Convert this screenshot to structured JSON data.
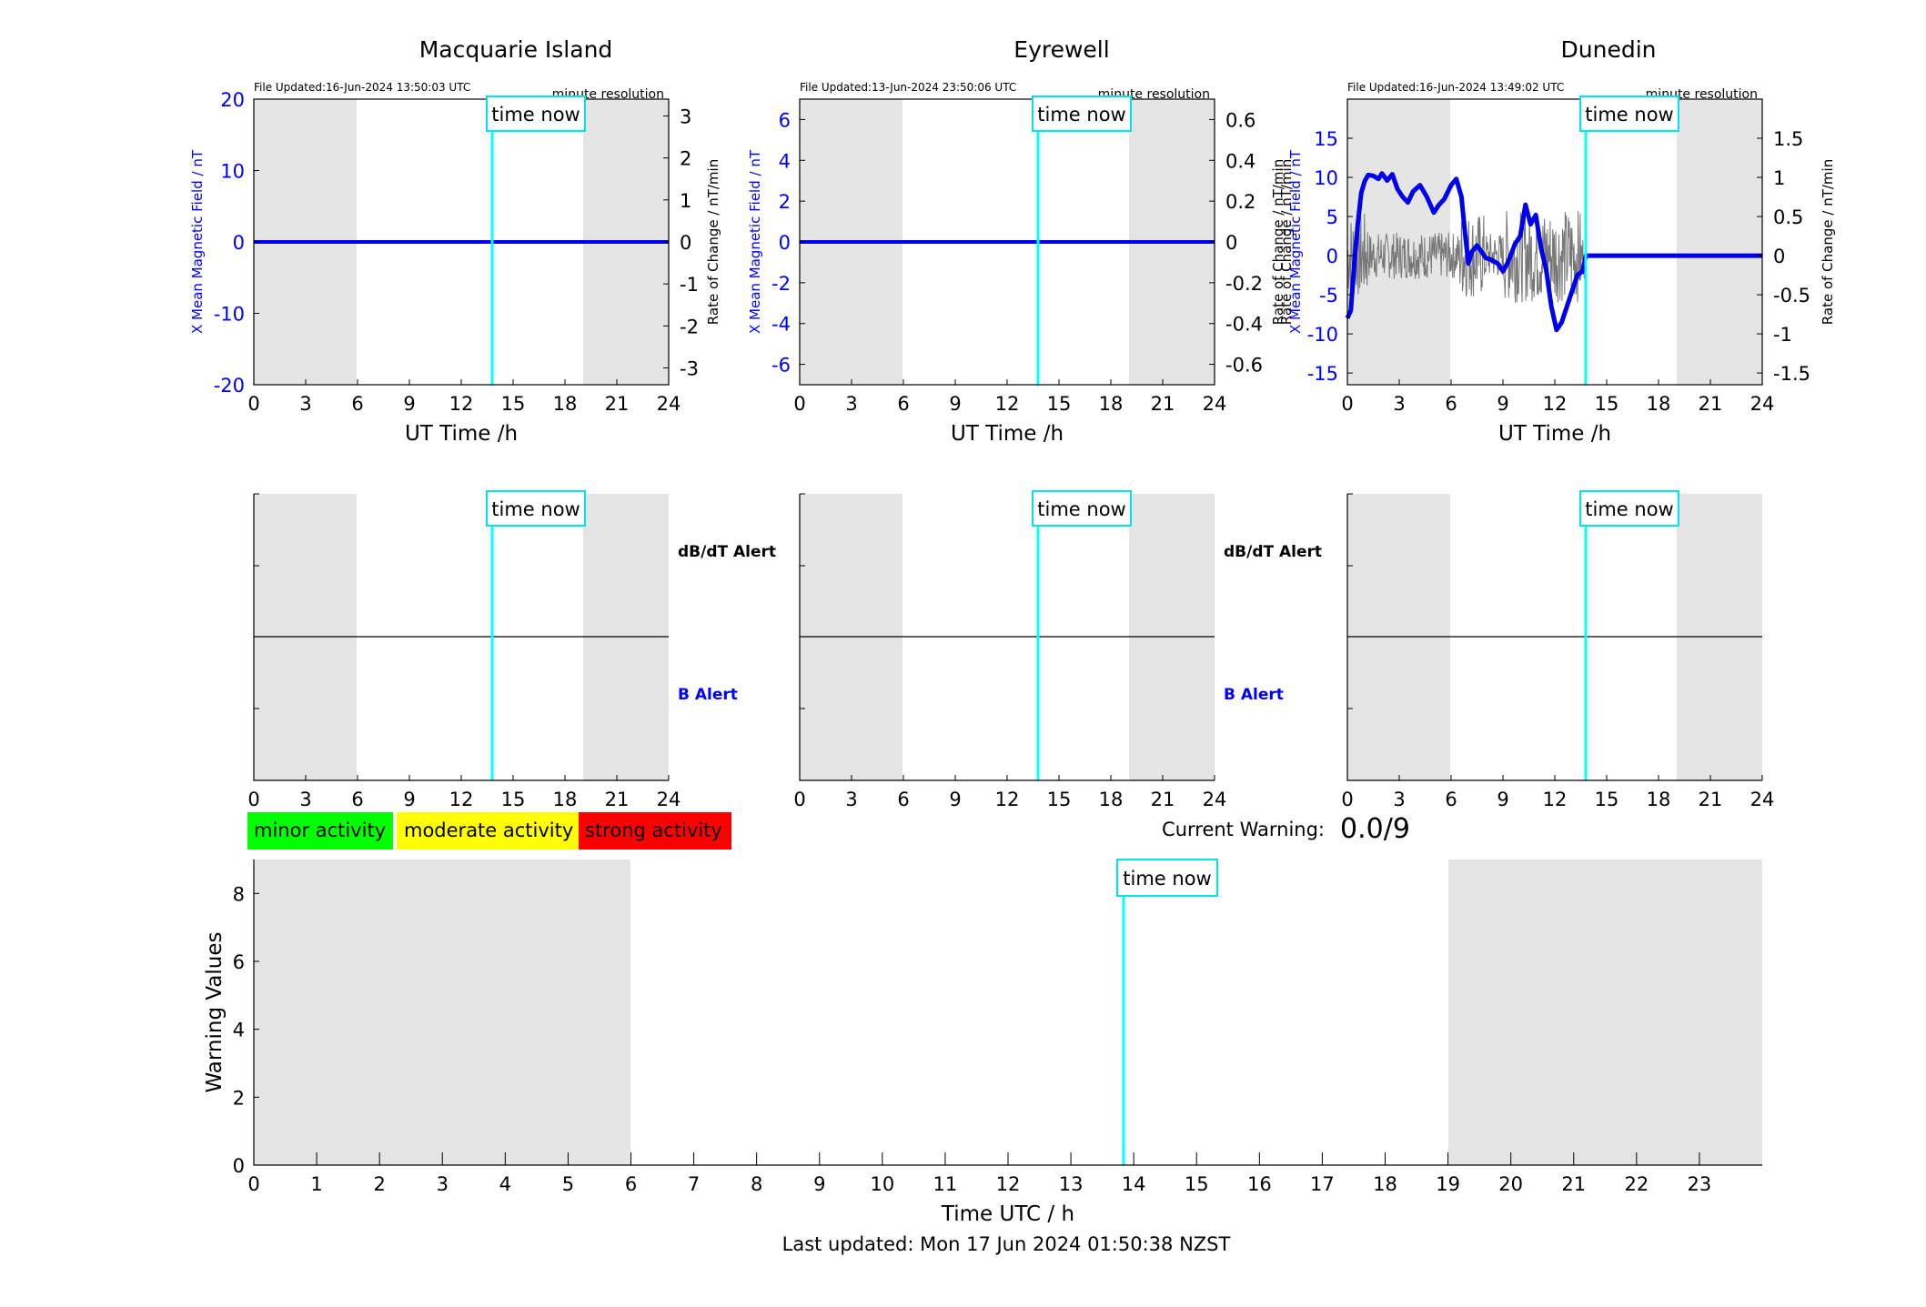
{
  "colors": {
    "night_shade": "#e5e5e5",
    "time_now": "#00ffff",
    "field_line": "#0000ee",
    "rate_line": "#777777",
    "axis_blue": "#0000ff",
    "minor": "#00ff00",
    "moderate": "#ffff00",
    "strong": "#ff0000"
  },
  "time_now_label": "time now",
  "time_now_hour": 13.85,
  "night_shading": [
    [
      0,
      6
    ],
    [
      19,
      24
    ]
  ],
  "xlabel_ut": "UT Time /h",
  "hour_ticks": [
    "0",
    "3",
    "6",
    "9",
    "12",
    "15",
    "18",
    "21",
    "24"
  ],
  "chart_data": [
    {
      "type": "line",
      "station": "Macquarie Island",
      "file_updated": "File Updated:16-Jun-2024 13:50:03 UTC",
      "resolution": "minute resolution",
      "xlabel": "UT Time /h",
      "ylabel_left": "X Mean Magnetic Field / nT",
      "ylabel_right": "Rate of Change / nT/min",
      "xlim": [
        0,
        24
      ],
      "ylim_left": [
        -20,
        20
      ],
      "ylim_right": [
        -3.4,
        3.4
      ],
      "yticks_left": [
        "20",
        "10",
        "0",
        "-10",
        "-20"
      ],
      "yticks_left_values": [
        20,
        10,
        0,
        -10,
        -20
      ],
      "yticks_right": [
        "3",
        "2",
        "1",
        "0",
        "-1",
        "-2",
        "-3"
      ],
      "yticks_right_values": [
        3,
        2,
        1,
        0,
        -1,
        -2,
        -3
      ],
      "series": [
        {
          "values_x": [
            0,
            24
          ],
          "values_y": [
            0,
            0
          ]
        }
      ]
    },
    {
      "type": "line",
      "station": "Eyrewell",
      "file_updated": "File Updated:13-Jun-2024 23:50:06 UTC",
      "resolution": "minute resolution",
      "xlabel": "UT Time /h",
      "ylabel_left": "X Mean Magnetic Field / nT",
      "ylabel_right": "Rate of Change / nT/min",
      "xlim": [
        0,
        24
      ],
      "ylim_left": [
        -7,
        7
      ],
      "ylim_right": [
        -0.7,
        0.7
      ],
      "yticks_left": [
        "6",
        "4",
        "2",
        "0",
        "-2",
        "-4",
        "-6"
      ],
      "yticks_left_values": [
        6,
        4,
        2,
        0,
        -2,
        -4,
        -6
      ],
      "yticks_right": [
        "0.6",
        "0.4",
        "0.2",
        "0",
        "-0.2",
        "-0.4",
        "-0.6"
      ],
      "yticks_right_values": [
        0.6,
        0.4,
        0.2,
        0,
        -0.2,
        -0.4,
        -0.6
      ],
      "series": [
        {
          "values_x": [
            0,
            24
          ],
          "values_y": [
            0,
            0
          ]
        }
      ]
    },
    {
      "type": "line",
      "station": "Dunedin",
      "file_updated": "File Updated:16-Jun-2024 13:49:02 UTC",
      "resolution": "minute resolution",
      "xlabel": "UT Time /h",
      "ylabel_left": "X Mean Magnetic Field / nT",
      "ylabel_right": "Rate of Change / nT/min",
      "xlim": [
        0,
        24
      ],
      "ylim_left": [
        -16.5,
        20
      ],
      "ylim_right": [
        -1.65,
        2.0
      ],
      "yticks_left": [
        "15",
        "10",
        "5",
        "0",
        "-5",
        "-10",
        "-15"
      ],
      "yticks_left_values": [
        15,
        10,
        5,
        0,
        -5,
        -10,
        -15
      ],
      "yticks_right": [
        "1.5",
        "1",
        "0.5",
        "0",
        "-0.5",
        "-1",
        "-1.5"
      ],
      "yticks_right_values": [
        1.5,
        1,
        0.5,
        0,
        -0.5,
        -1,
        -1.5
      ],
      "series": [
        {
          "values_x": [
            0,
            0.2,
            0.4,
            0.6,
            0.8,
            1.0,
            1.2,
            1.5,
            1.8,
            2.0,
            2.3,
            2.6,
            2.9,
            3.2,
            3.5,
            3.8,
            4.2,
            4.6,
            5.0,
            5.3,
            5.6,
            6.0,
            6.3,
            6.6,
            6.8,
            7.0,
            7.2,
            7.5,
            7.8,
            8.0,
            8.3,
            8.7,
            9.0,
            9.3,
            9.7,
            10.0,
            10.3,
            10.6,
            10.9,
            11.2,
            11.5,
            11.8,
            12.1,
            12.4,
            12.7,
            13.0,
            13.3,
            13.6,
            13.8,
            14.0,
            24
          ],
          "values_y": [
            -8,
            -7,
            -1,
            4,
            8,
            9.5,
            10.3,
            10.2,
            9.8,
            10.5,
            9.6,
            10.4,
            8.5,
            7.5,
            6.8,
            8.2,
            9.0,
            7.5,
            5.5,
            6.5,
            7.2,
            9.0,
            9.8,
            7.5,
            3.0,
            -1.0,
            0.5,
            1.3,
            0.4,
            -0.3,
            -0.5,
            -1.0,
            -2.0,
            -0.8,
            1.5,
            2.5,
            6.5,
            4.0,
            5.2,
            1.0,
            -1.8,
            -6.5,
            -9.5,
            -8.5,
            -6.5,
            -4.5,
            -2.5,
            -2.0,
            0,
            0,
            0
          ]
        }
      ]
    },
    {
      "type": "line",
      "title": "Warning Values",
      "xlabel": "Time UTC / h",
      "ylabel": "Warning Values",
      "xlim": [
        0,
        24
      ],
      "ylim": [
        0,
        9
      ],
      "yticks": [
        "0",
        "2",
        "4",
        "6",
        "8"
      ],
      "yticks_values": [
        0,
        2,
        4,
        6,
        8
      ],
      "xticks": [
        "0",
        "1",
        "2",
        "3",
        "4",
        "5",
        "6",
        "7",
        "8",
        "9",
        "10",
        "11",
        "12",
        "13",
        "14",
        "15",
        "16",
        "17",
        "18",
        "19",
        "20",
        "21",
        "22",
        "23"
      ],
      "series": []
    }
  ],
  "alerts": {
    "dbdt_label": "dB/dT Alert",
    "b_label": "B Alert"
  },
  "legend": {
    "minor": "minor activity",
    "moderate": "moderate activity",
    "strong": "strong activity"
  },
  "current_warning": {
    "label": "Current Warning:",
    "value": "0.0/9"
  },
  "footer": {
    "last_updated": "Last updated: Mon 17 Jun 2024 01:50:38 NZST"
  }
}
